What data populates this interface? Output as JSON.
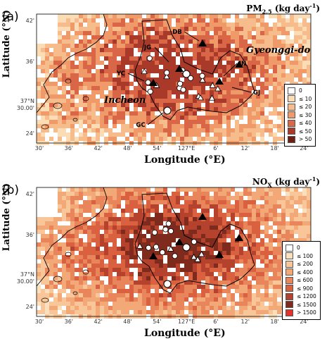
{
  "panels": [
    {
      "label": "(a)",
      "title_main": "PM",
      "title_sub": "2.5",
      "title_unit": " (kg day",
      "title_exp": "-1",
      "title_close": ")",
      "ylabel": "Latitude (°N)",
      "xlabel": "Longitude (°E)",
      "legend": [
        {
          "label": "0",
          "color": "#ffffff"
        },
        {
          "label": "≤ 10",
          "color": "#fbdcb4"
        },
        {
          "label": "≤ 20",
          "color": "#f7bc8c"
        },
        {
          "label": "≤ 30",
          "color": "#ef9a68"
        },
        {
          "label": "≤ 40",
          "color": "#d96646"
        },
        {
          "label": "≤ 50",
          "color": "#a93a2a"
        },
        {
          "label": "> 50",
          "color": "#6e1f15"
        }
      ],
      "place_labels": [
        "Gyeonggi-do",
        "Incheon"
      ],
      "site_labels": [
        "DB",
        "JG",
        "JN",
        "YC",
        "GJ",
        "GC"
      ]
    },
    {
      "label": "(b)",
      "title_main": "NO",
      "title_sub": "X",
      "title_unit": " (kg day",
      "title_exp": "-1",
      "title_close": ")",
      "ylabel": "Latitude (°N)",
      "xlabel": "Longitude (°E)",
      "legend": [
        {
          "label": "0",
          "color": "#ffffff"
        },
        {
          "label": "≤ 100",
          "color": "#fbe0bd"
        },
        {
          "label": "≤ 200",
          "color": "#f8c699"
        },
        {
          "label": "≤ 400",
          "color": "#f3a877"
        },
        {
          "label": "≤ 600",
          "color": "#e9855a"
        },
        {
          "label": "≤ 900",
          "color": "#d9613f"
        },
        {
          "label": "≤ 1200",
          "color": "#b5422c"
        },
        {
          "label": "≤ 1500",
          "color": "#7e2a1c"
        },
        {
          "label": "> 1500",
          "color": "#e2342c"
        }
      ],
      "place_labels": [],
      "site_labels": []
    }
  ],
  "axes": {
    "x_ticks": [
      "30'",
      "36'",
      "42'",
      "48'",
      "54'",
      "127°E",
      "6'",
      "12'",
      "18'",
      "24'"
    ],
    "y_ticks": [
      "42'",
      "36'",
      "37°N\n30.00'",
      "24'"
    ],
    "y_tick_top": "37°N",
    "y_tick_bottom": "30.00'"
  }
}
